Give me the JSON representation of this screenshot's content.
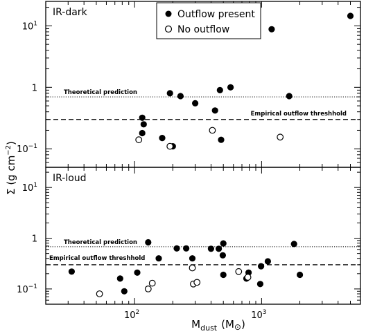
{
  "chart_data": {
    "type": "scatter",
    "xlabel": "M",
    "xlabel_sub": "dust",
    "xlabel_unit_open": "(M",
    "xlabel_unit_sun": "⊙",
    "xlabel_unit_close": ")",
    "ylabel": "Σ (g cm",
    "ylabel_sup": "−2",
    "ylabel_close": ")",
    "x_scale": "log",
    "y_scale": "log",
    "xlim": [
      20,
      6000
    ],
    "ylim": [
      0.05,
      25
    ],
    "x_ticks": [
      {
        "value": 100,
        "base": "10",
        "exp": "2"
      },
      {
        "value": 1000,
        "base": "10",
        "exp": "3"
      }
    ],
    "y_ticks": [
      {
        "value": 0.1,
        "base": "10",
        "exp": "−1"
      },
      {
        "value": 1,
        "base": "1",
        "exp": ""
      },
      {
        "value": 10,
        "base": "10",
        "exp": "1"
      }
    ],
    "legend": {
      "placement": "top-center",
      "entries": [
        {
          "label": "Outflow present",
          "marker": "filled-circle"
        },
        {
          "label": "No outflow",
          "marker": "open-circle"
        }
      ]
    },
    "panels": [
      {
        "label": "IR-dark",
        "theoretical_label": "Theoretical prediction",
        "empirical_label": "Empirical outflow threshhold",
        "theoretical_y": 0.7,
        "empirical_y": 0.3,
        "series": [
          {
            "marker": "filled-circle",
            "points": [
              [
                5000,
                14.5
              ],
              [
                1200,
                8.8
              ],
              [
                570,
                1.0
              ],
              [
                470,
                0.9
              ],
              [
                1650,
                0.72
              ],
              [
                190,
                0.8
              ],
              [
                230,
                0.72
              ],
              [
                300,
                0.55
              ],
              [
                430,
                0.42
              ],
              [
                115,
                0.32
              ],
              [
                118,
                0.25
              ],
              [
                115,
                0.18
              ],
              [
                165,
                0.15
              ],
              [
                200,
                0.11
              ],
              [
                480,
                0.14
              ]
            ]
          },
          {
            "marker": "open-circle",
            "points": [
              [
                108,
                0.14
              ],
              [
                190,
                0.11
              ],
              [
                410,
                0.2
              ],
              [
                1400,
                0.155
              ]
            ]
          }
        ]
      },
      {
        "label": "IR-loud",
        "theoretical_label": "Theoretical prediction",
        "empirical_label": "Empirical outflow threshhold",
        "theoretical_y": 0.68,
        "empirical_y": 0.3,
        "series": [
          {
            "marker": "filled-circle",
            "points": [
              [
                128,
                0.83
              ],
              [
                1800,
                0.77
              ],
              [
                500,
                0.79
              ],
              [
                215,
                0.63
              ],
              [
                255,
                0.63
              ],
              [
                400,
                0.62
              ],
              [
                460,
                0.62
              ],
              [
                495,
                0.46
              ],
              [
                155,
                0.4
              ],
              [
                285,
                0.4
              ],
              [
                1120,
                0.35
              ],
              [
                990,
                0.28
              ],
              [
                32,
                0.22
              ],
              [
                105,
                0.21
              ],
              [
                500,
                0.19
              ],
              [
                790,
                0.21
              ],
              [
                2000,
                0.19
              ],
              [
                77,
                0.16
              ],
              [
                760,
                0.16
              ],
              [
                83,
                0.09
              ],
              [
                975,
                0.125
              ]
            ]
          },
          {
            "marker": "open-circle",
            "points": [
              [
                53,
                0.08
              ],
              [
                128,
                0.1
              ],
              [
                138,
                0.13
              ],
              [
                285,
                0.26
              ],
              [
                290,
                0.125
              ],
              [
                310,
                0.135
              ],
              [
                660,
                0.22
              ],
              [
                780,
                0.17
              ]
            ]
          }
        ]
      }
    ]
  }
}
